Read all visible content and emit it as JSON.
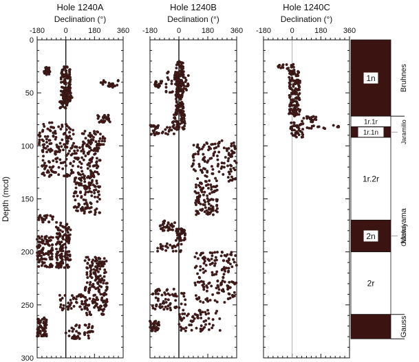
{
  "colors": {
    "data": "#4a1a17",
    "ink": "#111111",
    "reversed_fill": "#3b1412"
  },
  "axes": {
    "ylabel": "Depth (mcd)",
    "ylim": [
      0,
      300
    ],
    "xlim": [
      -180,
      360
    ],
    "yticks": [
      0,
      50,
      100,
      150,
      200,
      250,
      300
    ],
    "xticks": [
      -180,
      0,
      180,
      360
    ]
  },
  "chart_data": [
    {
      "type": "scatter",
      "title": "Hole 1240A",
      "xlabel": "Declination (°)",
      "ylabel": "Depth (mcd)",
      "xlim": [
        -180,
        360
      ],
      "ylim": [
        0,
        300
      ],
      "xticks": [
        -180,
        0,
        180,
        360
      ],
      "points_sampled": true,
      "intervals": [
        {
          "depth": [
            25,
            33
          ],
          "decl": [
            -140,
            -100
          ]
        },
        {
          "depth": [
            25,
            60
          ],
          "decl": [
            -30,
            30
          ]
        },
        {
          "depth": [
            38,
            45
          ],
          "decl": [
            220,
            330
          ]
        },
        {
          "depth": [
            50,
            57
          ],
          "decl": [
            -20,
            40
          ]
        },
        {
          "depth": [
            58,
            65
          ],
          "decl": [
            -40,
            10
          ]
        },
        {
          "depth": [
            70,
            78
          ],
          "decl": [
            200,
            280
          ]
        },
        {
          "depth": [
            78,
            100
          ],
          "decl": [
            -170,
            50
          ]
        },
        {
          "depth": [
            85,
            100
          ],
          "decl": [
            100,
            250
          ]
        },
        {
          "depth": [
            100,
            165
          ],
          "decl": [
            50,
            220
          ]
        },
        {
          "depth": [
            100,
            130
          ],
          "decl": [
            -150,
            50
          ]
        },
        {
          "depth": [
            165,
            172
          ],
          "decl": [
            -180,
            -80
          ]
        },
        {
          "depth": [
            172,
            215
          ],
          "decl": [
            -60,
            30
          ]
        },
        {
          "depth": [
            185,
            215
          ],
          "decl": [
            -180,
            -80
          ]
        },
        {
          "depth": [
            205,
            260
          ],
          "decl": [
            120,
            260
          ]
        },
        {
          "depth": [
            240,
            255
          ],
          "decl": [
            -40,
            130
          ]
        },
        {
          "depth": [
            262,
            280
          ],
          "decl": [
            -180,
            -120
          ]
        },
        {
          "depth": [
            268,
            282
          ],
          "decl": [
            0,
            170
          ]
        }
      ]
    },
    {
      "type": "scatter",
      "title": "Hole 1240B",
      "xlabel": "Declination (°)",
      "ylabel": "",
      "xlim": [
        -180,
        360
      ],
      "ylim": [
        0,
        300
      ],
      "xticks": [
        -180,
        0,
        180,
        360
      ],
      "points_sampled": true,
      "intervals": [
        {
          "depth": [
            20,
            70
          ],
          "decl": [
            -20,
            30
          ]
        },
        {
          "depth": [
            30,
            50
          ],
          "decl": [
            -80,
            60
          ]
        },
        {
          "depth": [
            38,
            45
          ],
          "decl": [
            -150,
            -100
          ]
        },
        {
          "depth": [
            70,
            85
          ],
          "decl": [
            -40,
            40
          ]
        },
        {
          "depth": [
            80,
            90
          ],
          "decl": [
            -180,
            -30
          ]
        },
        {
          "depth": [
            95,
            135
          ],
          "decl": [
            80,
            360
          ]
        },
        {
          "depth": [
            135,
            165
          ],
          "decl": [
            100,
            240
          ]
        },
        {
          "depth": [
            170,
            180
          ],
          "decl": [
            -120,
            -20
          ]
        },
        {
          "depth": [
            178,
            190
          ],
          "decl": [
            -20,
            40
          ]
        },
        {
          "depth": [
            192,
            200
          ],
          "decl": [
            -140,
            20
          ]
        },
        {
          "depth": [
            200,
            248
          ],
          "decl": [
            100,
            360
          ]
        },
        {
          "depth": [
            235,
            255
          ],
          "decl": [
            -170,
            40
          ]
        },
        {
          "depth": [
            255,
            275
          ],
          "decl": [
            0,
            260
          ]
        },
        {
          "depth": [
            265,
            275
          ],
          "decl": [
            -180,
            -120
          ]
        }
      ]
    },
    {
      "type": "scatter",
      "title": "Hole 1240C",
      "xlabel": "Declination (°)",
      "ylabel": "",
      "xlim": [
        -180,
        360
      ],
      "ylim": [
        0,
        300
      ],
      "xticks": [
        -180,
        0,
        180,
        360
      ],
      "points_sampled": true,
      "intervals": [
        {
          "depth": [
            23,
            28
          ],
          "decl": [
            -120,
            20
          ]
        },
        {
          "depth": [
            28,
            72
          ],
          "decl": [
            -20,
            50
          ]
        },
        {
          "depth": [
            72,
            78
          ],
          "decl": [
            60,
            150
          ]
        },
        {
          "depth": [
            78,
            92
          ],
          "decl": [
            -10,
            70
          ]
        },
        {
          "depth": [
            80,
            84
          ],
          "decl": [
            80,
            300
          ]
        }
      ]
    }
  ],
  "polarity_column": {
    "zones": [
      {
        "label": "1n",
        "top": 0,
        "bottom": 72,
        "polarity": "normal"
      },
      {
        "label": "1r.1r",
        "top": 72,
        "bottom": 82,
        "polarity": "reversed"
      },
      {
        "label": "1r.1n",
        "top": 82,
        "bottom": 92,
        "polarity": "normal"
      },
      {
        "label": "1r.2r",
        "top": 92,
        "bottom": 170,
        "polarity": "reversed"
      },
      {
        "label": "2n",
        "top": 170,
        "bottom": 200,
        "polarity": "normal"
      },
      {
        "label": "2r",
        "top": 200,
        "bottom": 259,
        "polarity": "reversed"
      },
      {
        "label": "",
        "top": 259,
        "bottom": 282,
        "polarity": "normal"
      }
    ],
    "chrons": [
      {
        "label": "Bruhnes",
        "top": 0,
        "bottom": 72,
        "style": "bracket"
      },
      {
        "label": "Jaramillo",
        "depth": 87,
        "style": "leader"
      },
      {
        "label": "Matuyama",
        "top": 92,
        "bottom": 259,
        "style": "none"
      },
      {
        "label": "Olduvai",
        "depth": 185,
        "style": "leader"
      },
      {
        "label": "Gauss",
        "top": 259,
        "bottom": 282,
        "style": "bracket"
      }
    ]
  }
}
